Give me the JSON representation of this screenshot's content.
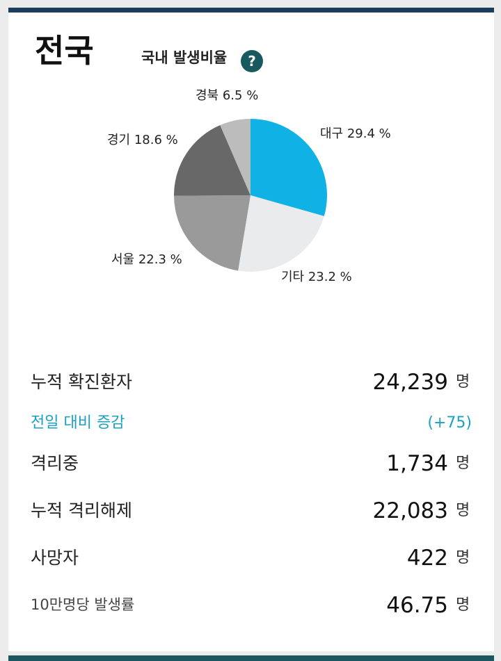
{
  "region_title": "전국",
  "chart_heading": "국내 발생비율",
  "help_label": "?",
  "chart_data": {
    "type": "pie",
    "slices": [
      {
        "name": "대구",
        "value": 29.4,
        "label": "대구 29.4 %",
        "color": "#10b2e6"
      },
      {
        "name": "기타",
        "value": 23.2,
        "label": "기타 23.2 %",
        "color": "#e9ebec"
      },
      {
        "name": "서울",
        "value": 22.3,
        "label": "서울 22.3 %",
        "color": "#9a9a9a"
      },
      {
        "name": "경기",
        "value": 18.6,
        "label": "경기 18.6 %",
        "color": "#686868"
      },
      {
        "name": "경북",
        "value": 6.5,
        "label": "경북 6.5 %",
        "color": "#bcbcbc"
      }
    ]
  },
  "stats": {
    "cumulative": {
      "label": "누적 확진환자",
      "value": "24,239",
      "unit": "명"
    },
    "change": {
      "label": "전일 대비 증감",
      "value": "(+75)"
    },
    "isolating": {
      "label": "격리중",
      "value": "1,734",
      "unit": "명"
    },
    "released": {
      "label": "누적 격리해제",
      "value": "22,083",
      "unit": "명"
    },
    "deaths": {
      "label": "사망자",
      "value": "422",
      "unit": "명"
    },
    "rate": {
      "label": "10만명당 발생률",
      "value": "46.75",
      "unit": "명"
    }
  }
}
